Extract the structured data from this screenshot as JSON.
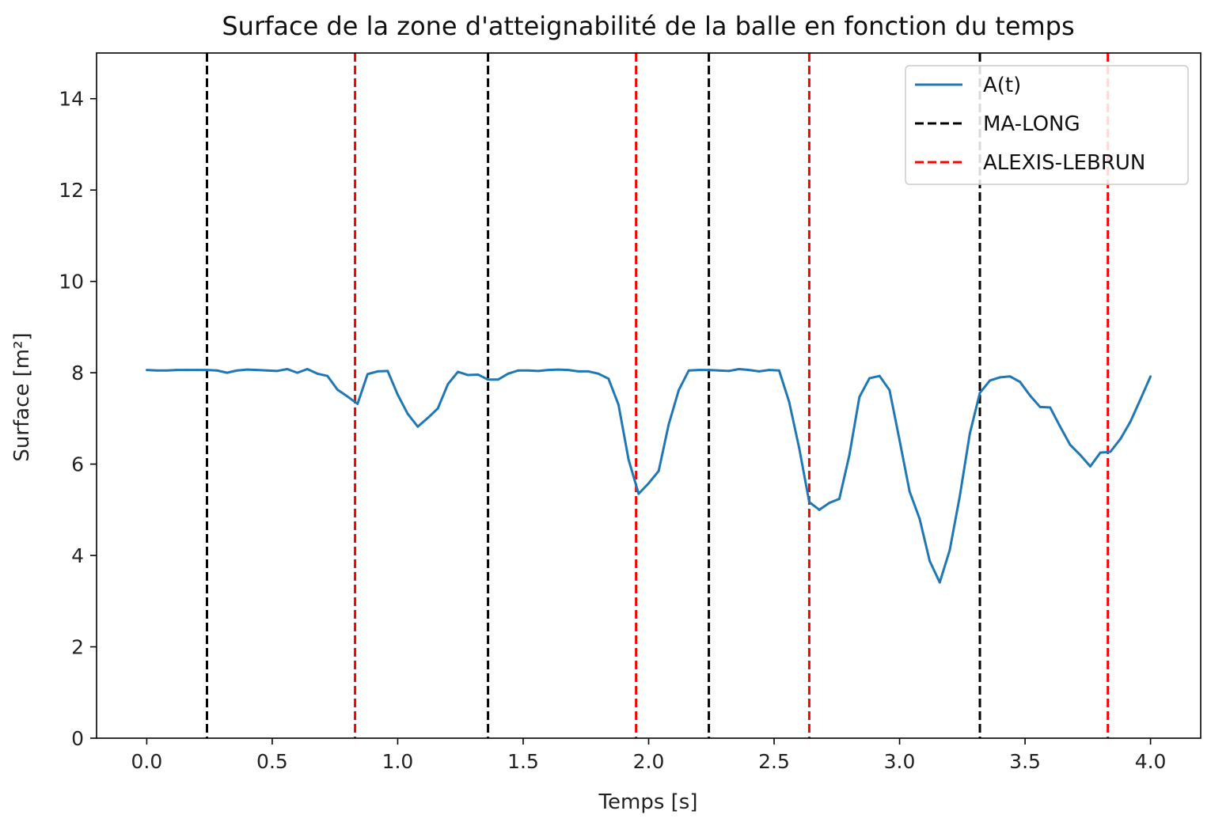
{
  "chart_data": {
    "type": "line",
    "title": "Surface de la zone d'atteignabilité de la balle en fonction du temps",
    "xlabel": "Temps [s]",
    "ylabel": "Surface [m²]",
    "xlim": [
      -0.2,
      4.2
    ],
    "ylim": [
      0,
      15
    ],
    "xticks": [
      0.0,
      0.5,
      1.0,
      1.5,
      2.0,
      2.5,
      3.0,
      3.5,
      4.0
    ],
    "xtick_labels": [
      "0.0",
      "0.5",
      "1.0",
      "1.5",
      "2.0",
      "2.5",
      "3.0",
      "3.5",
      "4.0"
    ],
    "yticks": [
      0,
      2,
      4,
      6,
      8,
      10,
      12,
      14
    ],
    "ytick_labels": [
      "0",
      "2",
      "4",
      "6",
      "8",
      "10",
      "12",
      "14"
    ],
    "grid": false,
    "legend_position": "top-right",
    "series": [
      {
        "name": "A(t)",
        "color": "#1f77b4",
        "style": "solid",
        "points": [
          [
            0.0,
            8.06
          ],
          [
            0.04,
            8.05
          ],
          [
            0.08,
            8.05
          ],
          [
            0.12,
            8.06
          ],
          [
            0.16,
            8.06
          ],
          [
            0.2,
            8.06
          ],
          [
            0.24,
            8.06
          ],
          [
            0.28,
            8.05
          ],
          [
            0.32,
            8.0
          ],
          [
            0.36,
            8.05
          ],
          [
            0.4,
            8.07
          ],
          [
            0.44,
            8.06
          ],
          [
            0.48,
            8.05
          ],
          [
            0.52,
            8.04
          ],
          [
            0.56,
            8.08
          ],
          [
            0.6,
            8.0
          ],
          [
            0.64,
            8.08
          ],
          [
            0.68,
            7.98
          ],
          [
            0.72,
            7.93
          ],
          [
            0.76,
            7.63
          ],
          [
            0.8,
            7.48
          ],
          [
            0.84,
            7.32
          ],
          [
            0.88,
            7.97
          ],
          [
            0.92,
            8.03
          ],
          [
            0.96,
            8.04
          ],
          [
            1.0,
            7.52
          ],
          [
            1.04,
            7.1
          ],
          [
            1.08,
            6.82
          ],
          [
            1.12,
            7.01
          ],
          [
            1.16,
            7.22
          ],
          [
            1.2,
            7.75
          ],
          [
            1.24,
            8.02
          ],
          [
            1.28,
            7.95
          ],
          [
            1.32,
            7.96
          ],
          [
            1.36,
            7.85
          ],
          [
            1.4,
            7.85
          ],
          [
            1.44,
            7.98
          ],
          [
            1.48,
            8.05
          ],
          [
            1.52,
            8.05
          ],
          [
            1.56,
            8.04
          ],
          [
            1.6,
            8.06
          ],
          [
            1.64,
            8.07
          ],
          [
            1.68,
            8.06
          ],
          [
            1.72,
            8.03
          ],
          [
            1.76,
            8.03
          ],
          [
            1.8,
            7.98
          ],
          [
            1.84,
            7.87
          ],
          [
            1.88,
            7.3
          ],
          [
            1.92,
            6.1
          ],
          [
            1.96,
            5.35
          ],
          [
            2.0,
            5.58
          ],
          [
            2.04,
            5.85
          ],
          [
            2.08,
            6.87
          ],
          [
            2.12,
            7.62
          ],
          [
            2.16,
            8.05
          ],
          [
            2.2,
            8.06
          ],
          [
            2.24,
            8.06
          ],
          [
            2.28,
            8.05
          ],
          [
            2.32,
            8.04
          ],
          [
            2.36,
            8.08
          ],
          [
            2.4,
            8.06
          ],
          [
            2.44,
            8.03
          ],
          [
            2.48,
            8.06
          ],
          [
            2.52,
            8.05
          ],
          [
            2.56,
            7.36
          ],
          [
            2.6,
            6.35
          ],
          [
            2.64,
            5.17
          ],
          [
            2.68,
            5.0
          ],
          [
            2.72,
            5.15
          ],
          [
            2.76,
            5.24
          ],
          [
            2.8,
            6.2
          ],
          [
            2.84,
            7.47
          ],
          [
            2.88,
            7.88
          ],
          [
            2.92,
            7.93
          ],
          [
            2.96,
            7.62
          ],
          [
            3.0,
            6.52
          ],
          [
            3.04,
            5.4
          ],
          [
            3.08,
            4.8
          ],
          [
            3.12,
            3.88
          ],
          [
            3.16,
            3.41
          ],
          [
            3.2,
            4.12
          ],
          [
            3.24,
            5.3
          ],
          [
            3.28,
            6.67
          ],
          [
            3.32,
            7.56
          ],
          [
            3.36,
            7.83
          ],
          [
            3.4,
            7.9
          ],
          [
            3.44,
            7.92
          ],
          [
            3.48,
            7.8
          ],
          [
            3.52,
            7.5
          ],
          [
            3.56,
            7.25
          ],
          [
            3.6,
            7.24
          ],
          [
            3.64,
            6.82
          ],
          [
            3.68,
            6.42
          ],
          [
            3.72,
            6.2
          ],
          [
            3.76,
            5.95
          ],
          [
            3.8,
            6.25
          ],
          [
            3.84,
            6.27
          ],
          [
            3.88,
            6.55
          ],
          [
            3.92,
            6.93
          ],
          [
            3.96,
            7.42
          ],
          [
            4.0,
            7.92
          ]
        ]
      },
      {
        "name": "MA-LONG",
        "color": "#000000",
        "style": "dashed",
        "vlines": [
          0.24,
          1.36,
          2.24,
          3.32
        ]
      },
      {
        "name": "ALEXIS-LEBRUN",
        "color": "#ff0000",
        "style": "dashed",
        "vlines": [
          0.83,
          1.95,
          2.64,
          3.83
        ]
      }
    ]
  }
}
